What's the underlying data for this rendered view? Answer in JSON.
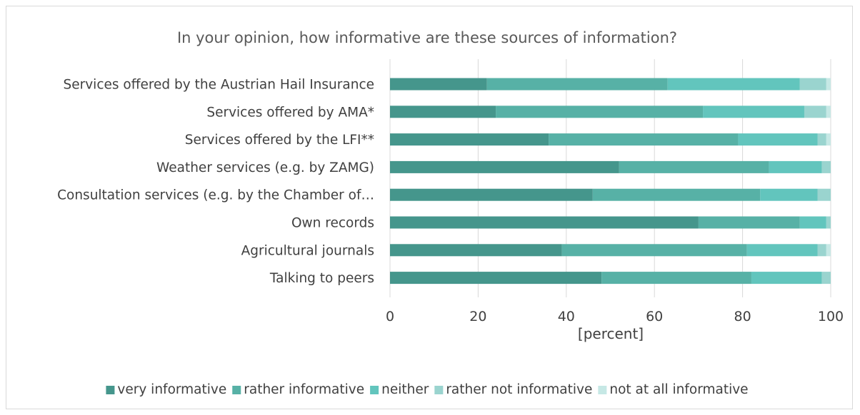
{
  "chart_data": {
    "type": "bar",
    "orientation": "horizontal",
    "stacked": true,
    "title": "In your opinion, how informative are these sources of information?",
    "xlabel": "[percent]",
    "ylabel": "",
    "xlim": [
      0,
      100
    ],
    "xticks": [
      "0",
      "20",
      "40",
      "60",
      "80",
      "100"
    ],
    "grid": true,
    "legend_position": "bottom",
    "categories": [
      "Services offered by the Austrian Hail Insurance",
      "Services offered by AMA*",
      "Services offered by the LFI**",
      "Weather services (e.g. by ZAMG)",
      "Consultation services (e.g. by the Chamber of…",
      "Own records",
      "Agricultural journals",
      "Talking to peers"
    ],
    "series": [
      {
        "name": "very informative",
        "color": "#45968C",
        "values": [
          22,
          24,
          36,
          52,
          46,
          70,
          39,
          48
        ]
      },
      {
        "name": "rather informative",
        "color": "#57B1A6",
        "values": [
          41,
          47,
          43,
          34,
          38,
          23,
          42,
          34
        ]
      },
      {
        "name": "neither",
        "color": "#62C5BD",
        "values": [
          30,
          23,
          18,
          12,
          13,
          6,
          16,
          16
        ]
      },
      {
        "name": "rather not informative",
        "color": "#9AD4CF",
        "values": [
          6,
          5,
          2,
          2,
          3,
          1,
          2,
          2
        ]
      },
      {
        "name": "not at all informative",
        "color": "#C6E8E5",
        "values": [
          1,
          1,
          1,
          0,
          0,
          0,
          1,
          0
        ]
      }
    ]
  }
}
